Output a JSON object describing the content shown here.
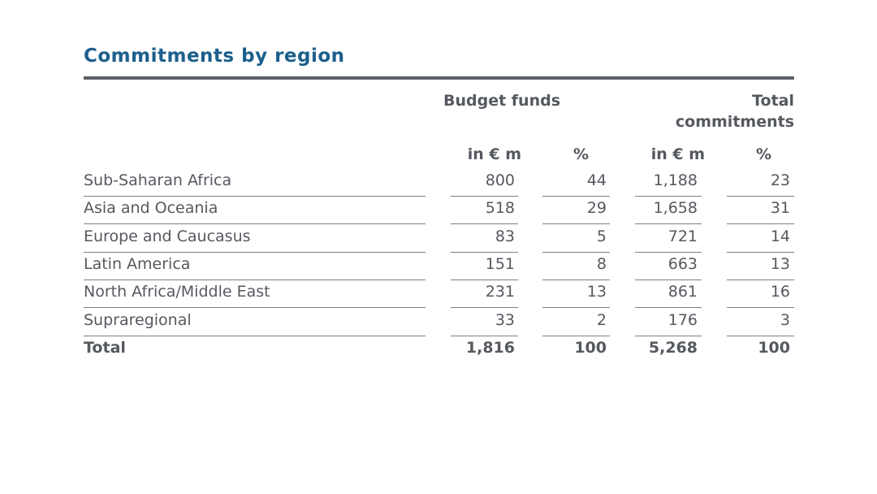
{
  "title": "Commitments by region",
  "headers": {
    "budget_funds": "Budget funds",
    "total_line1": "Total",
    "total_line2": "commitments",
    "amount_unit": "in € m",
    "percent_unit": "%"
  },
  "rows": [
    {
      "region": "Sub-Saharan Africa",
      "budget_amount": "800",
      "budget_pct": "44",
      "total_amount": "1,188",
      "total_pct": "23"
    },
    {
      "region": "Asia and Oceania",
      "budget_amount": "518",
      "budget_pct": "29",
      "total_amount": "1,658",
      "total_pct": "31"
    },
    {
      "region": "Europe and Caucasus",
      "budget_amount": "83",
      "budget_pct": "5",
      "total_amount": "721",
      "total_pct": "14"
    },
    {
      "region": "Latin America",
      "budget_amount": "151",
      "budget_pct": "8",
      "total_amount": "663",
      "total_pct": "13"
    },
    {
      "region": "North Africa/Middle East",
      "budget_amount": "231",
      "budget_pct": "13",
      "total_amount": "861",
      "total_pct": "16"
    },
    {
      "region": "Supraregional",
      "budget_amount": "33",
      "budget_pct": "2",
      "total_amount": "176",
      "total_pct": "3"
    }
  ],
  "total": {
    "label": "Total",
    "budget_amount": "1,816",
    "budget_pct": "100",
    "total_amount": "5,268",
    "total_pct": "100"
  }
}
